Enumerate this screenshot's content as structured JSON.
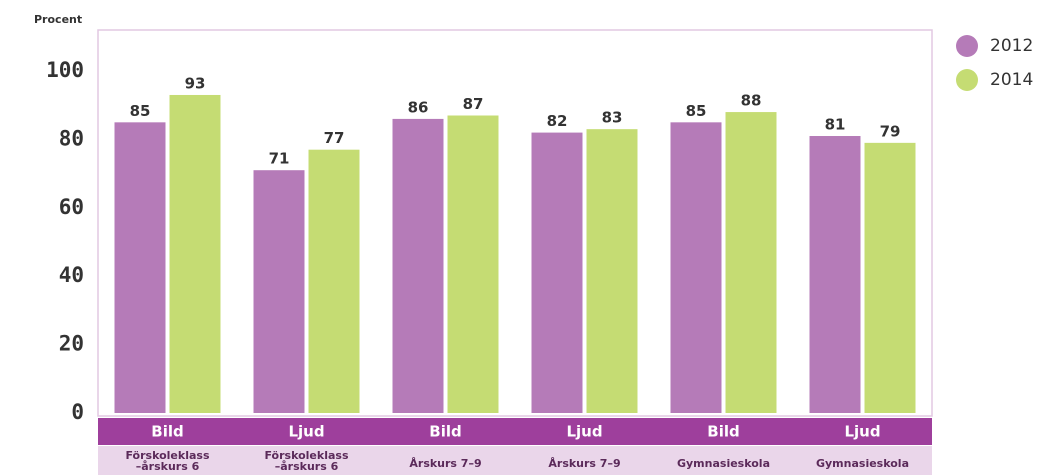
{
  "chart_data": {
    "type": "bar",
    "y_label": "Procent",
    "categories": [
      "Bild",
      "Ljud",
      "Bild",
      "Ljud",
      "Bild",
      "Ljud"
    ],
    "sublabels": [
      [
        "Förskoleklass",
        "–årskurs 6"
      ],
      [
        "Förskoleklass",
        "–årskurs 6"
      ],
      [
        "Årskurs 7–9"
      ],
      [
        "Årskurs 7–9"
      ],
      [
        "Gymnasieskola"
      ],
      [
        "Gymnasieskola"
      ]
    ],
    "series": [
      {
        "name": "2012",
        "color": "#b57bb8",
        "values": [
          85,
          71,
          86,
          82,
          85,
          81
        ]
      },
      {
        "name": "2014",
        "color": "#c5dc73",
        "values": [
          93,
          77,
          87,
          83,
          88,
          79
        ]
      }
    ],
    "ylim": [
      0,
      112
    ],
    "yticks": [
      0,
      20,
      40,
      60,
      80,
      100
    ],
    "grid": false,
    "legend": "right"
  }
}
